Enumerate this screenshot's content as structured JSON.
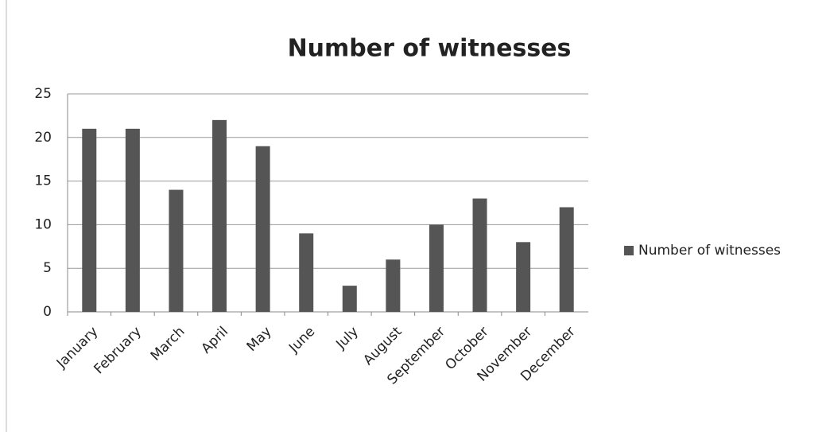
{
  "chart_data": {
    "type": "bar",
    "title": "Number of witnesses",
    "categories": [
      "January",
      "February",
      "March",
      "April",
      "May",
      "June",
      "July",
      "August",
      "September",
      "October",
      "November",
      "December"
    ],
    "series": [
      {
        "name": "Number of witnesses",
        "color": "#555555",
        "values": [
          21,
          21,
          14,
          22,
          19,
          9,
          3,
          6,
          10,
          13,
          8,
          12
        ]
      }
    ],
    "ylim": [
      0,
      25
    ],
    "yticks": [
      0,
      5,
      10,
      15,
      20,
      25
    ],
    "grid": true,
    "legend": "right"
  }
}
